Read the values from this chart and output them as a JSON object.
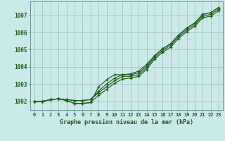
{
  "title": "Graphe pression niveau de la mer (hPa)",
  "bg_color": "#cce9e9",
  "grid_color": "#99bbbb",
  "line_color": "#1a5c1a",
  "xlim": [
    -0.5,
    23.5
  ],
  "ylim": [
    1001.5,
    1007.8
  ],
  "yticks": [
    1002,
    1003,
    1004,
    1005,
    1006,
    1007
  ],
  "xticks": [
    0,
    1,
    2,
    3,
    4,
    5,
    6,
    7,
    8,
    9,
    10,
    11,
    12,
    13,
    14,
    15,
    16,
    17,
    18,
    19,
    20,
    21,
    22,
    23
  ],
  "line1": [
    1002.0,
    1002.0,
    1002.1,
    1002.15,
    1002.1,
    1002.05,
    1002.05,
    1002.1,
    1002.6,
    1003.0,
    1003.35,
    1003.55,
    1003.55,
    1003.65,
    1004.05,
    1004.65,
    1005.05,
    1005.35,
    1005.85,
    1006.25,
    1006.55,
    1007.05,
    1007.15,
    1007.45
  ],
  "line2": [
    1002.0,
    1002.0,
    1002.1,
    1002.15,
    1002.1,
    1002.05,
    1002.05,
    1002.1,
    1002.5,
    1002.85,
    1003.2,
    1003.45,
    1003.45,
    1003.55,
    1003.95,
    1004.55,
    1004.95,
    1005.25,
    1005.75,
    1006.15,
    1006.45,
    1006.95,
    1007.05,
    1007.35
  ],
  "line3": [
    1002.0,
    1002.0,
    1002.1,
    1002.15,
    1002.05,
    1001.88,
    1001.88,
    1001.93,
    1002.35,
    1002.7,
    1003.05,
    1003.3,
    1003.35,
    1003.45,
    1003.85,
    1004.45,
    1004.85,
    1005.15,
    1005.65,
    1006.05,
    1006.35,
    1006.85,
    1006.95,
    1007.25
  ],
  "line4": [
    1002.0,
    1002.0,
    1002.1,
    1002.15,
    1002.05,
    1001.88,
    1001.88,
    1001.93,
    1002.85,
    1003.25,
    1003.55,
    1003.55,
    1003.6,
    1003.75,
    1004.15,
    1004.65,
    1005.05,
    1005.35,
    1005.85,
    1006.25,
    1006.55,
    1007.05,
    1007.15,
    1007.45
  ]
}
